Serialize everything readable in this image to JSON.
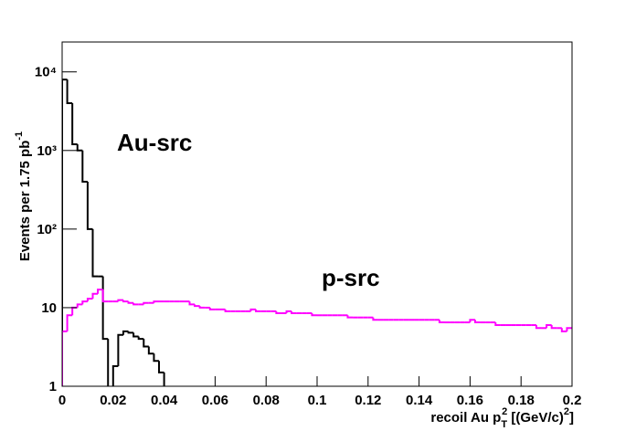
{
  "chart_data": {
    "type": "histogram",
    "log_y": true,
    "x_label_parts": [
      "recoil Au p",
      "T",
      "2",
      " [(GeV/c)",
      "2",
      "]"
    ],
    "y_label_parts": [
      "Events per 1.75 pb",
      "-1"
    ],
    "annotations": [
      {
        "text": "Au-src",
        "color": "#000000"
      },
      {
        "text": "p-src",
        "color": "#ff00ff"
      }
    ],
    "xlim": [
      0,
      0.2
    ],
    "ylim": [
      1,
      24000
    ],
    "xticks": [
      0,
      0.02,
      0.04,
      0.06,
      0.08,
      0.1,
      0.12,
      0.14,
      0.16,
      0.18,
      0.2
    ],
    "yticks": [
      1,
      10,
      {
        "value": 100,
        "label": "10²"
      },
      {
        "value": 1000,
        "label": "10³"
      },
      {
        "value": 10000,
        "label": "10⁴"
      }
    ],
    "bins": [
      0,
      0.002,
      0.004,
      0.006,
      0.008,
      0.01,
      0.012,
      0.014,
      0.016,
      0.018,
      0.02,
      0.022,
      0.024,
      0.026,
      0.028,
      0.03,
      0.032,
      0.034,
      0.036,
      0.038,
      0.04,
      0.042,
      0.044,
      0.046,
      0.048,
      0.05,
      0.052,
      0.054,
      0.056,
      0.058,
      0.06,
      0.062,
      0.064,
      0.066,
      0.068,
      0.07,
      0.072,
      0.074,
      0.076,
      0.078,
      0.08,
      0.082,
      0.084,
      0.086,
      0.088,
      0.09,
      0.092,
      0.094,
      0.096,
      0.098,
      0.1,
      0.102,
      0.104,
      0.106,
      0.108,
      0.11,
      0.112,
      0.114,
      0.116,
      0.118,
      0.12,
      0.122,
      0.124,
      0.126,
      0.128,
      0.13,
      0.132,
      0.134,
      0.136,
      0.138,
      0.14,
      0.142,
      0.144,
      0.146,
      0.148,
      0.15,
      0.152,
      0.154,
      0.156,
      0.158,
      0.16,
      0.162,
      0.164,
      0.166,
      0.168,
      0.17,
      0.172,
      0.174,
      0.176,
      0.178,
      0.18,
      0.182,
      0.184,
      0.186,
      0.188,
      0.19,
      0.192,
      0.194,
      0.196,
      0.198,
      0.2
    ],
    "series": [
      {
        "name": "Au-src",
        "color": "#000000",
        "values": [
          8000,
          4000,
          1200,
          1000,
          400,
          100,
          25,
          25,
          4,
          0,
          1.8,
          4.5,
          5,
          4.8,
          4.3,
          4,
          3.2,
          2.6,
          2.1,
          1.5,
          0,
          0,
          0,
          0,
          0,
          0,
          0,
          0,
          0,
          0,
          0,
          0,
          0,
          0,
          0,
          0,
          0,
          0,
          0,
          0,
          0,
          0,
          0,
          0,
          0,
          0,
          0,
          0,
          0,
          0,
          0,
          0,
          0,
          0,
          0,
          0,
          0,
          0,
          0,
          0,
          0,
          0,
          0,
          0,
          0,
          0,
          0,
          0,
          0,
          0,
          0,
          0,
          0,
          0,
          0,
          0,
          0,
          0,
          0,
          0,
          0,
          0,
          0,
          0,
          0,
          0,
          0,
          0,
          0,
          0,
          0,
          0,
          0,
          0,
          0,
          0,
          0,
          0,
          0,
          0
        ]
      },
      {
        "name": "p-src",
        "color": "#ff00ff",
        "values": [
          5,
          8,
          10,
          11,
          12,
          13,
          15,
          17,
          12,
          12,
          12,
          12.5,
          12,
          11.5,
          11,
          11,
          11.5,
          11.5,
          12,
          12,
          12,
          12,
          12,
          12,
          12,
          11,
          10.5,
          10,
          10,
          9.5,
          9.5,
          9.5,
          9,
          9,
          9,
          9,
          9,
          9.5,
          9,
          9,
          9,
          9,
          8.5,
          8.5,
          9,
          8.5,
          8.5,
          8.5,
          8.5,
          8,
          8,
          8,
          8,
          8,
          8,
          8,
          7.5,
          7.5,
          7.5,
          7.5,
          7.5,
          7,
          7,
          7,
          7,
          7,
          7,
          7,
          7,
          7,
          7,
          7,
          7,
          7,
          6.5,
          6.5,
          6.5,
          6.5,
          6.5,
          6.5,
          7,
          6.5,
          6.5,
          6.5,
          6.5,
          6,
          6,
          6,
          6,
          6,
          6,
          6,
          6,
          5.5,
          5.5,
          6,
          5.5,
          5.5,
          5,
          5.5
        ]
      }
    ]
  }
}
